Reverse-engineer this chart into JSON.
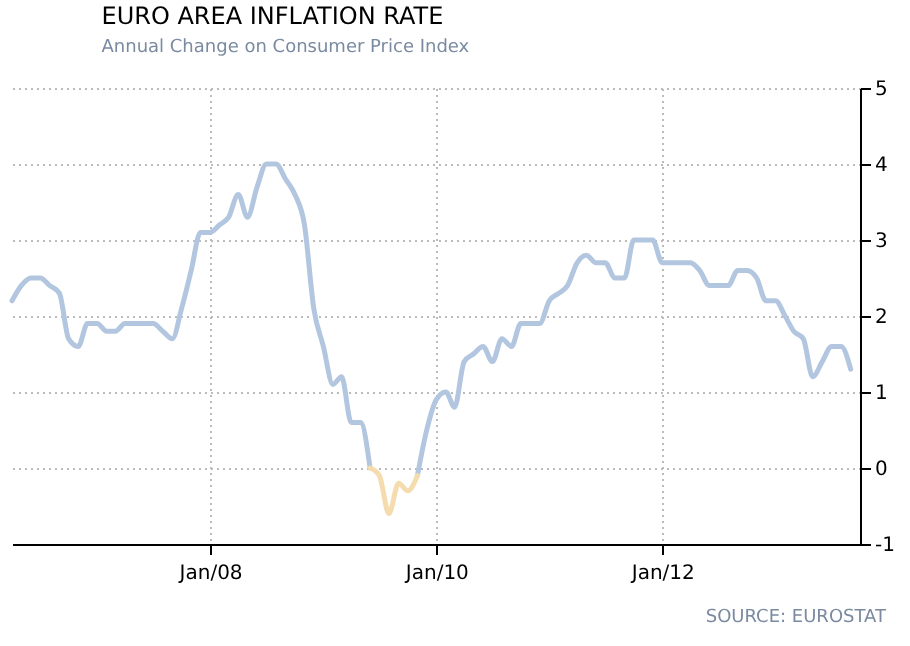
{
  "chart_data": {
    "type": "line",
    "title": "EURO AREA INFLATION RATE",
    "subtitle": "Annual Change on Consumer Price Index",
    "annotations": [
      "SOURCE: EUROSTAT"
    ],
    "x": [
      "2006-04",
      "2006-05",
      "2006-06",
      "2006-07",
      "2006-08",
      "2006-09",
      "2006-10",
      "2006-11",
      "2006-12",
      "2007-01",
      "2007-02",
      "2007-03",
      "2007-04",
      "2007-05",
      "2007-06",
      "2007-07",
      "2007-08",
      "2007-09",
      "2007-10",
      "2007-11",
      "2007-12",
      "2008-01",
      "2008-02",
      "2008-03",
      "2008-04",
      "2008-05",
      "2008-06",
      "2008-07",
      "2008-08",
      "2008-09",
      "2008-10",
      "2008-11",
      "2008-12",
      "2009-01",
      "2009-02",
      "2009-03",
      "2009-04",
      "2009-05",
      "2009-06",
      "2009-07",
      "2009-08",
      "2009-09",
      "2009-10",
      "2009-11",
      "2009-12",
      "2010-01",
      "2010-02",
      "2010-03",
      "2010-04",
      "2010-05",
      "2010-06",
      "2010-07",
      "2010-08",
      "2010-09",
      "2010-10",
      "2010-11",
      "2010-12",
      "2011-01",
      "2011-02",
      "2011-03",
      "2011-04",
      "2011-05",
      "2011-06",
      "2011-07",
      "2011-08",
      "2011-09",
      "2011-10",
      "2011-11",
      "2011-12",
      "2012-01",
      "2012-02",
      "2012-03",
      "2012-04",
      "2012-05",
      "2012-06",
      "2012-07",
      "2012-08",
      "2012-09",
      "2012-10",
      "2012-11",
      "2012-12",
      "2013-01",
      "2013-02",
      "2013-03",
      "2013-04",
      "2013-05",
      "2013-06",
      "2013-07",
      "2013-08",
      "2013-09"
    ],
    "series": [
      {
        "color": "#b3c6e0",
        "values": [
          2.2,
          2.4,
          2.5,
          2.5,
          2.4,
          2.3,
          1.7,
          1.6,
          1.9,
          1.9,
          1.8,
          1.8,
          1.9,
          1.9,
          1.9,
          1.9,
          1.8,
          1.7,
          2.1,
          2.6,
          3.1,
          3.1,
          3.2,
          3.3,
          3.6,
          3.3,
          3.7,
          4.0,
          4.0,
          3.8,
          3.6,
          3.2,
          2.1,
          1.6,
          1.1,
          1.2,
          0.6,
          0.6,
          0.0,
          null,
          null,
          null,
          null,
          -0.1,
          0.5,
          0.9,
          1.0,
          0.8,
          1.4,
          1.5,
          1.6,
          1.4,
          1.7,
          1.6,
          1.9,
          1.9,
          1.9,
          2.2,
          2.3,
          2.4,
          2.7,
          2.8,
          2.7,
          2.7,
          2.5,
          2.5,
          3.0,
          3.0,
          3.0,
          2.7,
          2.7,
          2.7,
          2.7,
          2.6,
          2.4,
          2.4,
          2.4,
          2.6,
          2.6,
          2.5,
          2.2,
          2.2,
          2.0,
          1.8,
          1.7,
          1.2,
          1.4,
          1.6,
          1.6,
          1.3
        ]
      },
      {
        "color": "#f5dcae",
        "x": [
          "2009-06",
          "2009-07",
          "2009-08",
          "2009-09",
          "2009-10",
          "2009-11"
        ],
        "values": [
          0.0,
          -0.1,
          -0.6,
          -0.2,
          -0.3,
          -0.1
        ]
      }
    ],
    "xlim": [
      "2006-04",
      "2013-10"
    ],
    "xticks": [
      {
        "value": "2008-01",
        "label": "Jan/08"
      },
      {
        "value": "2010-01",
        "label": "Jan/10"
      },
      {
        "value": "2012-01",
        "label": "Jan/12"
      }
    ],
    "ylim": [
      -1,
      5
    ],
    "yticks": [
      -1,
      0,
      1,
      2,
      3,
      4,
      5
    ],
    "grid": true
  }
}
